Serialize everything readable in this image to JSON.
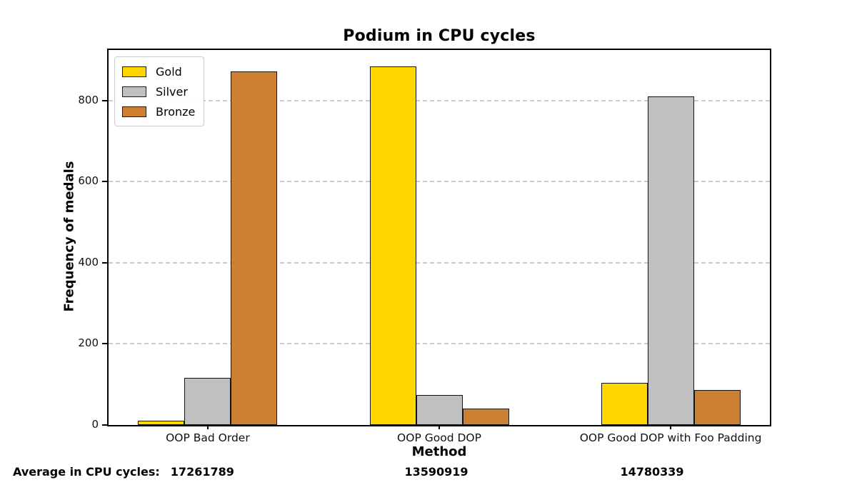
{
  "chart_data": {
    "type": "bar",
    "title": "Podium in CPU cycles",
    "xlabel": "Method",
    "ylabel": "Frequency of medals",
    "categories": [
      "OOP Bad Order",
      "OOP Good DOP",
      "OOP Good DOP with Foo Padding"
    ],
    "series": [
      {
        "name": "Gold",
        "color": "#FFD700",
        "values": [
          10,
          885,
          104
        ]
      },
      {
        "name": "Silver",
        "color": "#C0C0C0",
        "values": [
          117,
          74,
          810
        ]
      },
      {
        "name": "Bronze",
        "color": "#CD7F32",
        "values": [
          873,
          41,
          86
        ]
      }
    ],
    "yticks": [
      0,
      200,
      400,
      600,
      800
    ],
    "ylim": [
      0,
      925
    ],
    "bar_edge_color": "#141414",
    "grid": {
      "axis": "y",
      "style": "dashed",
      "color": "#cccccc"
    },
    "legend_position": "upper left"
  },
  "annotations": {
    "label": "Average in CPU cycles:",
    "values": [
      "17261789",
      "13590919",
      "14780339"
    ]
  }
}
